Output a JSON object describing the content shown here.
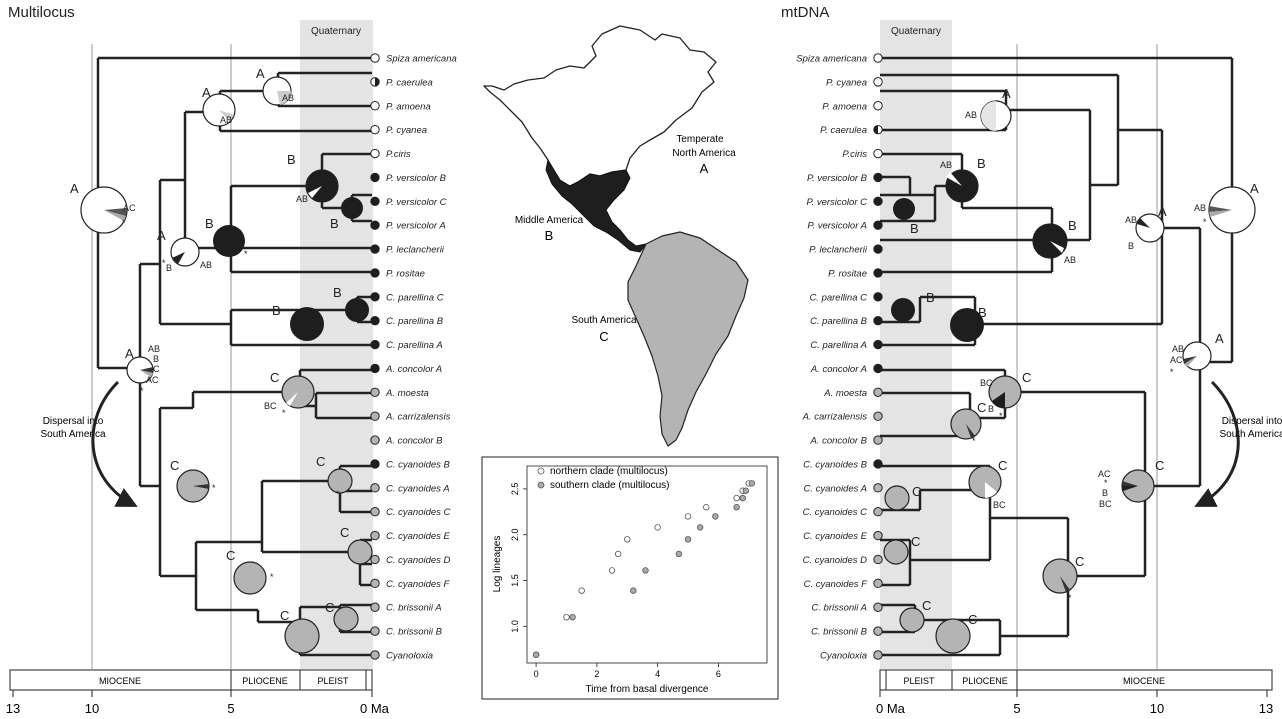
{
  "left_panel": {
    "title": "Multilocus",
    "quaternary_label": "Quaternary",
    "epochs": [
      "MIOCENE",
      "PLIOCENE",
      "PLEIST"
    ],
    "axis_ticks": [
      "13",
      "10",
      "5",
      "0 Ma"
    ],
    "dispersal_note": [
      "Dispersal into",
      "South America"
    ],
    "taxa": [
      {
        "name": "Spiza americana",
        "state": "A"
      },
      {
        "name": "P. caerulea",
        "state": "AB"
      },
      {
        "name": "P. amoena",
        "state": "A"
      },
      {
        "name": "P. cyanea",
        "state": "A"
      },
      {
        "name": "P.ciris",
        "state": "A"
      },
      {
        "name": "P. versicolor B",
        "state": "B"
      },
      {
        "name": "P. versicolor C",
        "state": "B"
      },
      {
        "name": "P. versicolor A",
        "state": "B"
      },
      {
        "name": "P. leclancherii",
        "state": "B"
      },
      {
        "name": "P. rositae",
        "state": "B"
      },
      {
        "name": "C. parellina C",
        "state": "B"
      },
      {
        "name": "C. parellina B",
        "state": "B"
      },
      {
        "name": "C. parellina A",
        "state": "B"
      },
      {
        "name": "A. concolor A",
        "state": "B"
      },
      {
        "name": "A. moesta",
        "state": "C"
      },
      {
        "name": "A. carrizalensis",
        "state": "C"
      },
      {
        "name": "A. concolor B",
        "state": "C"
      },
      {
        "name": "C. cyanoides B",
        "state": "B"
      },
      {
        "name": "C. cyanoides A",
        "state": "C"
      },
      {
        "name": "C. cyanoides C",
        "state": "C"
      },
      {
        "name": "C. cyanoides E",
        "state": "C"
      },
      {
        "name": "C. cyanoides D",
        "state": "C"
      },
      {
        "name": "C. cyanoides F",
        "state": "C"
      },
      {
        "name": "C. brissonii A",
        "state": "C"
      },
      {
        "name": "C. brissonii B",
        "state": "C"
      },
      {
        "name": "Cyanoloxia",
        "state": "C"
      }
    ]
  },
  "right_panel": {
    "title": "mtDNA",
    "quaternary_label": "Quaternary",
    "epochs": [
      "PLEIST",
      "PLIOCENE",
      "MIOCENE"
    ],
    "axis_ticks": [
      "0 Ma",
      "5",
      "10",
      "13"
    ],
    "dispersal_note": [
      "Dispersal into",
      "South America"
    ],
    "taxa": [
      {
        "name": "Spiza americana",
        "state": "A"
      },
      {
        "name": "P. cyanea",
        "state": "A"
      },
      {
        "name": "P. amoena",
        "state": "A"
      },
      {
        "name": "P. caerulea",
        "state": "AB"
      },
      {
        "name": "P.ciris",
        "state": "A"
      },
      {
        "name": "P. versicolor B",
        "state": "B"
      },
      {
        "name": "P. versicolor C",
        "state": "B"
      },
      {
        "name": "P. versicolor A",
        "state": "B"
      },
      {
        "name": "P. leclancherii",
        "state": "B"
      },
      {
        "name": "P. rositae",
        "state": "B"
      },
      {
        "name": "C. parellina C",
        "state": "B"
      },
      {
        "name": "C. parellina B",
        "state": "B"
      },
      {
        "name": "C. parellina A",
        "state": "B"
      },
      {
        "name": "A. concolor A",
        "state": "B"
      },
      {
        "name": "A. moesta",
        "state": "C"
      },
      {
        "name": "A. carrizalensis",
        "state": "C"
      },
      {
        "name": "A. concolor B",
        "state": "C"
      },
      {
        "name": "C. cyanoides B",
        "state": "B"
      },
      {
        "name": "C. cyanoides A",
        "state": "C"
      },
      {
        "name": "C. cyanoides C",
        "state": "C"
      },
      {
        "name": "C. cyanoides E",
        "state": "C"
      },
      {
        "name": "C. cyanoides D",
        "state": "C"
      },
      {
        "name": "C. cyanoides F",
        "state": "C"
      },
      {
        "name": "C. brissonii A",
        "state": "C"
      },
      {
        "name": "C. brissonii B",
        "state": "C"
      },
      {
        "name": "Cyanoloxia",
        "state": "C"
      }
    ]
  },
  "map": {
    "regions": [
      {
        "name": "Temperate",
        "name2": "North America",
        "letter": "A"
      },
      {
        "name": "Middle America",
        "letter": "B"
      },
      {
        "name": "South America",
        "letter": "C"
      }
    ],
    "colors": {
      "A": "#ffffff",
      "B": "#1e1e1e",
      "C": "#b4b4b4"
    }
  },
  "chart_data": {
    "type": "scatter",
    "xlabel": "Time from basal divergence",
    "ylabel": "Log lineages",
    "xlim": [
      -0.3,
      7.6
    ],
    "ylim": [
      0.6,
      2.75
    ],
    "x_ticks": [
      "0",
      "2",
      "4",
      "6"
    ],
    "y_ticks": [
      "1.0",
      "1.5",
      "2.0",
      "2.5"
    ],
    "legend_position": "top-left",
    "series": [
      {
        "name": "northern clade (multilocus)",
        "color": "#ffffff",
        "points": [
          [
            0.0,
            0.69
          ],
          [
            1.0,
            1.1
          ],
          [
            1.5,
            1.39
          ],
          [
            2.5,
            1.61
          ],
          [
            2.7,
            1.79
          ],
          [
            3.0,
            1.95
          ],
          [
            4.0,
            2.08
          ],
          [
            5.0,
            2.2
          ],
          [
            5.6,
            2.3
          ],
          [
            6.6,
            2.4
          ],
          [
            6.8,
            2.48
          ],
          [
            7.0,
            2.56
          ]
        ]
      },
      {
        "name": "southern clade (multilocus)",
        "color": "#aaaaaa",
        "points": [
          [
            0.0,
            0.69
          ],
          [
            1.2,
            1.1
          ],
          [
            3.2,
            1.39
          ],
          [
            3.6,
            1.61
          ],
          [
            4.7,
            1.79
          ],
          [
            5.0,
            1.95
          ],
          [
            5.4,
            2.08
          ],
          [
            5.9,
            2.2
          ],
          [
            6.6,
            2.3
          ],
          [
            6.8,
            2.4
          ],
          [
            6.9,
            2.48
          ],
          [
            7.1,
            2.56
          ]
        ]
      }
    ]
  }
}
